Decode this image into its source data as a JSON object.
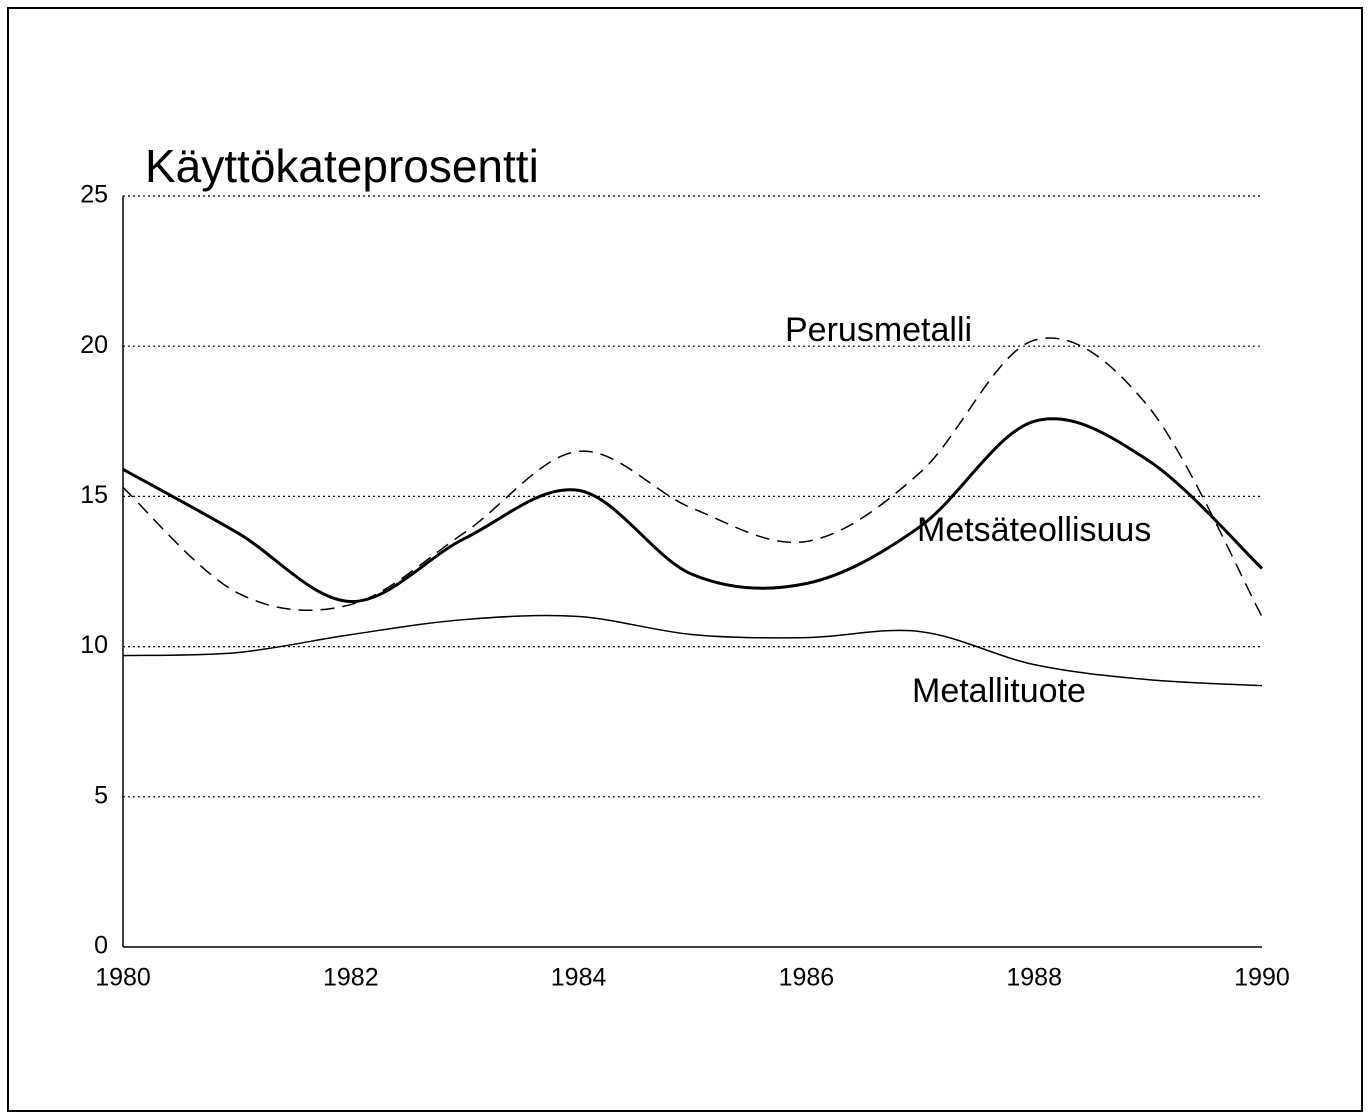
{
  "chart_data": {
    "type": "line",
    "title": "Käyttökateprosentti",
    "x": [
      1980,
      1981,
      1982,
      1983,
      1984,
      1985,
      1986,
      1987,
      1988,
      1989,
      1990
    ],
    "series": [
      {
        "name": "Perusmetalli",
        "color": "#000000",
        "line_style": "dashed",
        "linewidth": 1.5,
        "values": [
          15.3,
          11.8,
          11.4,
          13.8,
          16.5,
          14.6,
          13.5,
          15.8,
          20.2,
          18.0,
          11.0
        ]
      },
      {
        "name": "Metsäteollisuus",
        "color": "#000000",
        "line_style": "solid",
        "linewidth": 3,
        "values": [
          15.9,
          13.8,
          11.5,
          13.6,
          15.2,
          12.4,
          12.1,
          14.0,
          17.5,
          16.2,
          12.6
        ]
      },
      {
        "name": "Metallituote",
        "color": "#000000",
        "line_style": "solid",
        "linewidth": 1.5,
        "values": [
          9.7,
          9.8,
          10.4,
          10.9,
          11.0,
          10.4,
          10.3,
          10.5,
          9.4,
          8.9,
          8.7
        ]
      }
    ],
    "xlim": [
      1980,
      1990
    ],
    "xticks": [
      1980,
      1982,
      1984,
      1986,
      1988,
      1990
    ],
    "ylim": [
      0,
      25
    ],
    "yticks": [
      0,
      5,
      10,
      15,
      20,
      25
    ],
    "grid": true
  }
}
